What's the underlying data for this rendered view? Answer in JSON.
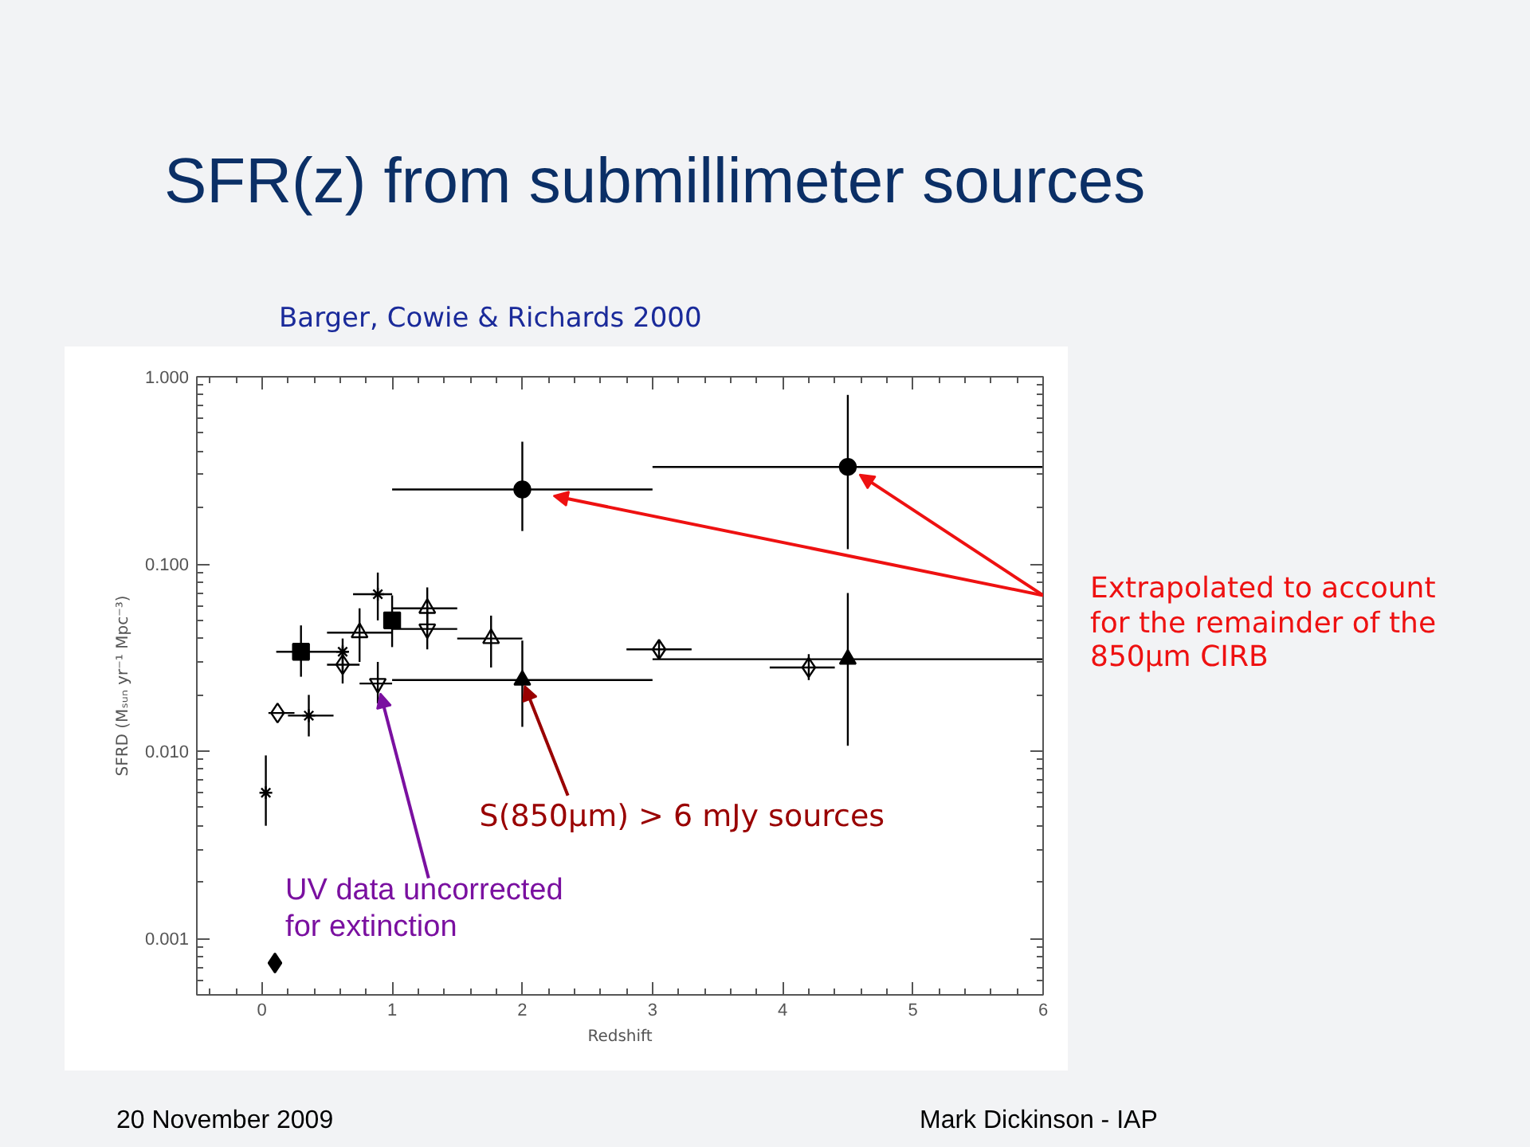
{
  "chart_data": {
    "type": "scatter",
    "title": "SFR(z) from submillimeter sources",
    "subtitle": "Barger, Cowie & Richards 2000",
    "xlabel": "Redshift",
    "ylabel": "SFRD (Mₛᵤₙ yr⁻¹ Mpc⁻³)",
    "log": "y",
    "xlim": [
      -0.5,
      6
    ],
    "xticks": [
      0,
      1,
      2,
      3,
      4,
      5,
      6
    ],
    "ylim": [
      0.0005,
      1
    ],
    "yticks": [
      {
        "value": 0.001,
        "label": "0.001"
      },
      {
        "value": 0.01,
        "label": "0.010"
      },
      {
        "value": 0.1,
        "label": "0.100"
      },
      {
        "value": 1,
        "label": "1.000"
      }
    ],
    "series": [
      {
        "type": "scatter",
        "marker": "circle",
        "color": "#000000",
        "x": [
          2,
          4.5
        ],
        "values": [
          0.25,
          0.33
        ],
        "errors": [
          [
            0.15,
            0.45
          ],
          [
            0.12,
            0.8
          ]
        ],
        "xerrors": [
          [
            1,
            3
          ],
          [
            3,
            6
          ]
        ]
      },
      {
        "type": "scatter",
        "marker": "triangle",
        "color": "#000000",
        "x": [
          2,
          4.5
        ],
        "values": [
          0.024,
          0.031
        ],
        "errors": [
          [
            0.0135,
            0.039
          ],
          [
            0.0107,
            0.07
          ]
        ],
        "xerrors": [
          [
            1,
            3
          ],
          [
            3,
            6
          ]
        ]
      },
      {
        "type": "scatter",
        "marker": "square",
        "color": "#000000",
        "x": [
          0.3,
          1.0
        ],
        "values": [
          0.034,
          0.05
        ],
        "errors": [
          [
            0.025,
            0.047
          ],
          [
            0.036,
            0.068
          ]
        ],
        "xerrors": [
          [
            0.11,
            0.66
          ],
          null
        ]
      },
      {
        "type": "scatter",
        "marker": "diamond_open",
        "color": "#000000",
        "x": [
          0.12,
          0.62,
          3.05,
          4.2
        ],
        "values": [
          0.016,
          0.029,
          0.035,
          0.028
        ],
        "errors": [
          null,
          [
            0.023,
            0.036
          ],
          [
            0.031,
            0.039
          ],
          [
            0.024,
            0.033
          ]
        ],
        "xerrors": [
          [
            0.05,
            0.25
          ],
          [
            0.5,
            0.75
          ],
          [
            2.8,
            3.3
          ],
          [
            3.9,
            4.4
          ]
        ]
      },
      {
        "type": "scatter",
        "marker": "triangle_open",
        "color": "#000000",
        "x": [
          0.75,
          1.27,
          1.76
        ],
        "values": [
          0.043,
          0.058,
          0.04
        ],
        "errors": [
          [
            0.03,
            0.058
          ],
          [
            0.045,
            0.075
          ],
          [
            0.028,
            0.053
          ]
        ],
        "xerrors": [
          [
            0.5,
            1.0
          ],
          [
            1.0,
            1.5
          ],
          [
            1.5,
            2.0
          ]
        ]
      },
      {
        "type": "scatter",
        "marker": "triangle_down_open",
        "color": "#000000",
        "x": [
          0.89,
          1.27
        ],
        "values": [
          0.023,
          0.045
        ],
        "errors": [
          [
            0.018,
            0.03
          ],
          [
            0.035,
            0.06
          ]
        ],
        "xerrors": [
          [
            0.75,
            1.0
          ],
          [
            1.0,
            1.5
          ]
        ]
      },
      {
        "type": "scatter",
        "marker": "cross",
        "color": "#000000",
        "x": [
          0.03,
          0.36,
          0.62,
          0.89
        ],
        "values": [
          0.006,
          0.0155,
          0.034,
          0.069
        ],
        "errors": [
          [
            0.004,
            0.0095
          ],
          [
            0.012,
            0.02
          ],
          [
            0.026,
            0.04
          ],
          [
            0.05,
            0.09
          ]
        ],
        "xerrors": [
          null,
          [
            0.2,
            0.55
          ],
          null,
          [
            0.7,
            1.0
          ]
        ]
      },
      {
        "type": "scatter",
        "marker": "diamond",
        "color": "#000000",
        "x": [
          0.1
        ],
        "values": [
          0.00074
        ]
      }
    ],
    "annotations": [
      "Extrapolated to account for the remainder of the 850μm CIRB",
      {
        "text": "S(850μm) > 6 mJy sources",
        "x": 2,
        "y": 0.024
      },
      {
        "text": "UV data uncorrected for extinction",
        "x": 0.89,
        "y": 0.023
      },
      "20 November 2009",
      "Mark Dickinson - IAP"
    ]
  }
}
